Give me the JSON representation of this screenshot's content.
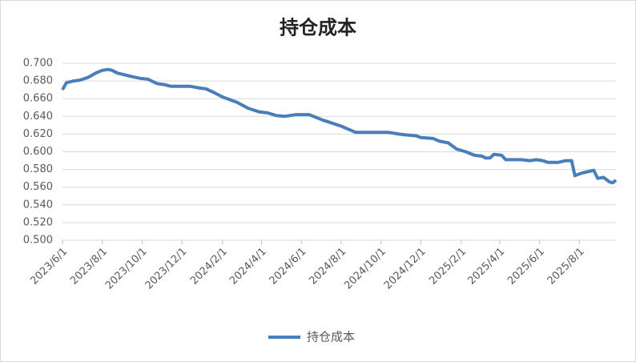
{
  "chart_data": {
    "type": "line",
    "title": "持仓成本",
    "x": [
      "2023/6/1",
      "2023/6/7",
      "2023/6/18",
      "2023/6/28",
      "2023/7/10",
      "2023/7/22",
      "2023/8/1",
      "2023/8/10",
      "2023/8/16",
      "2023/8/24",
      "2023/9/15",
      "2023/9/28",
      "2023/10/10",
      "2023/10/24",
      "2023/11/3",
      "2023/11/14",
      "2023/12/13",
      "2023/12/28",
      "2024/1/7",
      "2024/1/19",
      "2024/2/1",
      "2024/2/23",
      "2024/3/12",
      "2024/3/29",
      "2024/4/10",
      "2024/4/23",
      "2024/5/6",
      "2024/5/24",
      "2024/6/13",
      "2024/7/3",
      "2024/8/1",
      "2024/8/23",
      "2024/10/12",
      "2024/10/28",
      "2024/11/9",
      "2024/11/24",
      "2024/12/1",
      "2024/12/20",
      "2024/12/29",
      "2025/1/12",
      "2025/1/25",
      "2025/2/8",
      "2025/2/21",
      "2025/3/5",
      "2025/3/10",
      "2025/3/17",
      "2025/3/23",
      "2025/4/4",
      "2025/4/10",
      "2025/5/4",
      "2025/5/17",
      "2025/5/27",
      "2025/6/6",
      "2025/6/14",
      "2025/6/29",
      "2025/7/11",
      "2025/7/20",
      "2025/7/25",
      "2025/8/5",
      "2025/8/23",
      "2025/8/29",
      "2025/9/7",
      "2025/9/16",
      "2025/9/21",
      "2025/9/26"
    ],
    "series": [
      {
        "name": "持仓成本",
        "color": "#4a7ebb",
        "values": [
          0.67,
          0.678,
          0.68,
          0.681,
          0.684,
          0.689,
          0.692,
          0.693,
          0.692,
          0.689,
          0.685,
          0.683,
          0.682,
          0.677,
          0.676,
          0.674,
          0.674,
          0.672,
          0.671,
          0.667,
          0.662,
          0.656,
          0.649,
          0.645,
          0.644,
          0.641,
          0.64,
          0.642,
          0.642,
          0.636,
          0.629,
          0.622,
          0.622,
          0.62,
          0.619,
          0.618,
          0.616,
          0.615,
          0.612,
          0.61,
          0.603,
          0.6,
          0.596,
          0.595,
          0.593,
          0.593,
          0.597,
          0.596,
          0.591,
          0.591,
          0.59,
          0.591,
          0.59,
          0.588,
          0.588,
          0.59,
          0.59,
          0.573,
          0.576,
          0.579,
          0.57,
          0.571,
          0.566,
          0.565,
          0.568
        ]
      }
    ],
    "xlim": [
      "2023/6/1",
      "2025/9/26"
    ],
    "xticks": [
      "2023/6/1",
      "2023/8/1",
      "2023/10/1",
      "2023/12/1",
      "2024/2/1",
      "2024/4/1",
      "2024/6/1",
      "2024/8/1",
      "2024/10/1",
      "2024/12/1",
      "2025/2/1",
      "2025/4/1",
      "2025/6/1",
      "2025/8/1"
    ],
    "ylim": [
      0.5,
      0.7
    ],
    "yticks": [
      {
        "value": 0.5,
        "label": "0.500"
      },
      {
        "value": 0.52,
        "label": "0.520"
      },
      {
        "value": 0.54,
        "label": "0.540"
      },
      {
        "value": 0.56,
        "label": "0.560"
      },
      {
        "value": 0.58,
        "label": "0.580"
      },
      {
        "value": 0.6,
        "label": "0.600"
      },
      {
        "value": 0.62,
        "label": "0.620"
      },
      {
        "value": 0.64,
        "label": "0.640"
      },
      {
        "value": 0.66,
        "label": "0.660"
      },
      {
        "value": 0.68,
        "label": "0.680"
      },
      {
        "value": 0.7,
        "label": "0.700"
      }
    ],
    "grid": true,
    "legend": "bottom"
  }
}
